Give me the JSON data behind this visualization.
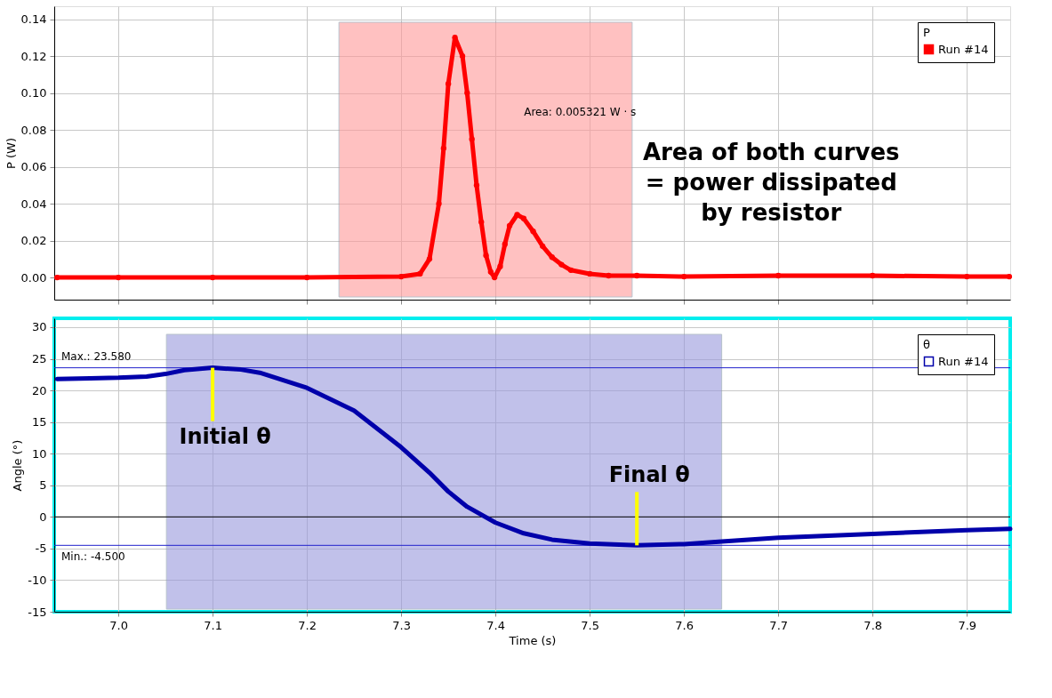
{
  "chart_data": [
    {
      "type": "line",
      "ylabel": "P (W)",
      "legend_title": "P",
      "legend": "top right",
      "marker": "circle",
      "line_style": "solid",
      "grid": true,
      "tick_labels": "y",
      "xlim": [
        6.932,
        7.946
      ],
      "ylim": [
        -0.012,
        0.147
      ],
      "xticks": [
        {
          "value": 7.0,
          "label": null
        },
        {
          "value": 7.1,
          "label": null
        },
        {
          "value": 7.2,
          "label": null
        },
        {
          "value": 7.3,
          "label": null
        },
        {
          "value": 7.4,
          "label": null
        },
        {
          "value": 7.5,
          "label": null
        },
        {
          "value": 7.6,
          "label": null
        },
        {
          "value": 7.7,
          "label": null
        },
        {
          "value": 7.8,
          "label": null
        },
        {
          "value": 7.9,
          "label": null
        }
      ],
      "yticks": [
        {
          "value": 0,
          "label": "0.00"
        },
        {
          "value": 0.02,
          "label": "0.02"
        },
        {
          "value": 0.04,
          "label": "0.04"
        },
        {
          "value": 0.06,
          "label": "0.06"
        },
        {
          "value": 0.08,
          "label": "0.08"
        },
        {
          "value": 0.1,
          "label": "0.10"
        },
        {
          "value": 0.12,
          "label": "0.12"
        },
        {
          "value": 0.14,
          "label": "0.14"
        }
      ],
      "bands": [
        {
          "axis": "x",
          "from": 7.234,
          "to": 7.545,
          "color": "#ff9999"
        }
      ],
      "annotations": [
        "Area: 0.005321 W · s",
        "Area of both curves = power dissipated by resistor"
      ],
      "series": [
        {
          "name": "Run #14",
          "color": "#ff0000",
          "x": [
            6.935,
            7.0,
            7.1,
            7.2,
            7.3,
            7.32,
            7.33,
            7.34,
            7.345,
            7.35,
            7.357,
            7.365,
            7.37,
            7.375,
            7.38,
            7.385,
            7.39,
            7.395,
            7.399,
            7.405,
            7.41,
            7.415,
            7.423,
            7.43,
            7.44,
            7.45,
            7.46,
            7.47,
            7.48,
            7.5,
            7.52,
            7.55,
            7.6,
            7.7,
            7.8,
            7.9,
            7.945
          ],
          "values": [
            0,
            0,
            0,
            0,
            0.0005,
            0.002,
            0.01,
            0.04,
            0.07,
            0.105,
            0.13,
            0.12,
            0.1,
            0.075,
            0.05,
            0.03,
            0.012,
            0.003,
            0,
            0.006,
            0.018,
            0.028,
            0.034,
            0.032,
            0.025,
            0.017,
            0.011,
            0.007,
            0.004,
            0.002,
            0.001,
            0.001,
            0.0005,
            0.001,
            0.001,
            0.0005,
            0.0005
          ]
        }
      ]
    },
    {
      "type": "line",
      "xlabel": "Time (s)",
      "ylabel": "Angle (°)",
      "legend_title": "θ",
      "legend": "top right",
      "line_style": "solid",
      "grid": true,
      "xlim": [
        6.932,
        7.946
      ],
      "ylim": [
        -15,
        31.4
      ],
      "xticks": [
        {
          "value": 7.0,
          "label": "7.0"
        },
        {
          "value": 7.1,
          "label": "7.1"
        },
        {
          "value": 7.2,
          "label": "7.2"
        },
        {
          "value": 7.3,
          "label": "7.3"
        },
        {
          "value": 7.4,
          "label": "7.4"
        },
        {
          "value": 7.5,
          "label": "7.5"
        },
        {
          "value": 7.6,
          "label": "7.6"
        },
        {
          "value": 7.7,
          "label": "7.7"
        },
        {
          "value": 7.8,
          "label": "7.8"
        },
        {
          "value": 7.9,
          "label": "7.9"
        }
      ],
      "yticks": [
        -15,
        -10,
        -5,
        0,
        5,
        10,
        15,
        20,
        25,
        30
      ],
      "bands": [
        {
          "axis": "x",
          "from": 7.051,
          "to": 7.64,
          "color": "#9999dd"
        }
      ],
      "ref_lines": [
        {
          "axis": "y",
          "value": 23.58,
          "label": "Max.: 23.580",
          "color": "#2222cc"
        },
        {
          "axis": "y",
          "value": -4.5,
          "label": "Min.: -4.500",
          "color": "#2222cc"
        },
        {
          "axis": "y",
          "value": 0,
          "color": "#000000"
        }
      ],
      "annotations": [
        {
          "text": "Initial θ",
          "x": 7.1,
          "y": 23.58
        },
        {
          "text": "Final θ",
          "x": 7.55,
          "y": -4.5
        }
      ],
      "series": [
        {
          "name": "Run #14",
          "color": "#0000aa",
          "x": [
            6.935,
            6.97,
            7.0,
            7.03,
            7.05,
            7.07,
            7.1,
            7.13,
            7.15,
            7.2,
            7.25,
            7.3,
            7.33,
            7.35,
            7.37,
            7.4,
            7.43,
            7.46,
            7.5,
            7.55,
            7.6,
            7.64,
            7.7,
            7.8,
            7.9,
            7.946
          ],
          "values": [
            21.8,
            21.9,
            22.0,
            22.2,
            22.6,
            23.2,
            23.58,
            23.3,
            22.8,
            20.4,
            16.8,
            11.0,
            7.0,
            4.0,
            1.6,
            -0.9,
            -2.6,
            -3.6,
            -4.2,
            -4.5,
            -4.3,
            -3.9,
            -3.3,
            -2.7,
            -2.1,
            -1.9
          ]
        }
      ]
    }
  ]
}
